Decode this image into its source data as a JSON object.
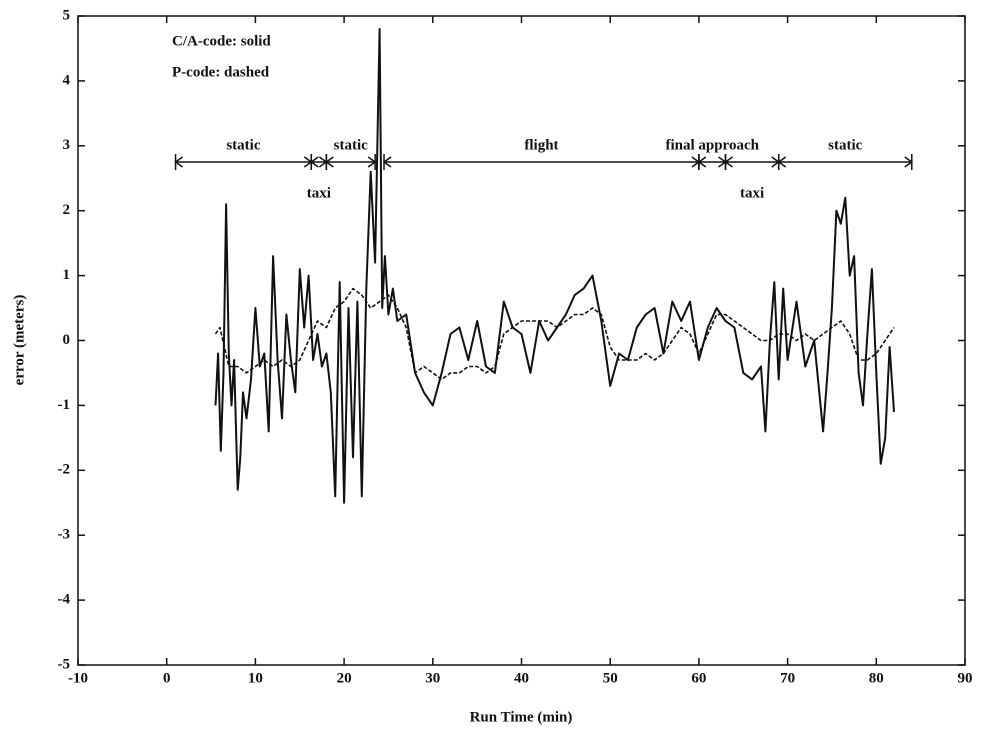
{
  "chart_data": {
    "type": "line",
    "xlabel": "Run Time (min)",
    "ylabel": "error (meters)",
    "xlim": [
      -10,
      90
    ],
    "xticks": [
      -10,
      0,
      10,
      20,
      30,
      40,
      50,
      60,
      70,
      80,
      90
    ],
    "ylim": [
      -5,
      5
    ],
    "yticks": [
      -5,
      -4,
      -3,
      -2,
      -1,
      0,
      1,
      2,
      3,
      4,
      5
    ],
    "series": [
      {
        "name": "C/A-code: solid",
        "color": "#111111",
        "dash": "solid",
        "x": [
          5.5,
          5.8,
          6.1,
          6.4,
          6.7,
          7.0,
          7.3,
          7.6,
          8.0,
          8.3,
          8.6,
          9.0,
          9.5,
          10.0,
          10.5,
          11.0,
          11.5,
          12.0,
          12.5,
          13.0,
          13.5,
          14.0,
          14.5,
          15.0,
          15.5,
          16.0,
          16.5,
          17.0,
          17.5,
          18.0,
          18.5,
          19.0,
          19.5,
          20.0,
          20.5,
          21.0,
          21.5,
          22.0,
          22.5,
          23.0,
          23.5,
          24.0,
          24.3,
          24.6,
          25.0,
          25.5,
          26.0,
          27.0,
          28.0,
          29.0,
          30.0,
          31.0,
          32.0,
          33.0,
          34.0,
          35.0,
          36.0,
          37.0,
          38.0,
          39.0,
          40.0,
          41.0,
          42.0,
          43.0,
          44.0,
          45.0,
          46.0,
          47.0,
          48.0,
          49.0,
          50.0,
          51.0,
          52.0,
          53.0,
          54.0,
          55.0,
          56.0,
          57.0,
          58.0,
          59.0,
          60.0,
          61.0,
          62.0,
          63.0,
          64.0,
          65.0,
          66.0,
          67.0,
          67.5,
          68.0,
          68.5,
          69.0,
          69.5,
          70.0,
          71.0,
          72.0,
          73.0,
          74.0,
          74.5,
          75.0,
          75.5,
          76.0,
          76.5,
          77.0,
          77.5,
          78.0,
          78.5,
          79.0,
          79.5,
          80.0,
          80.5,
          81.0,
          81.5,
          82.0
        ],
        "values": [
          -1.0,
          -0.2,
          -1.7,
          -0.5,
          2.1,
          -0.2,
          -1.0,
          -0.3,
          -2.3,
          -1.8,
          -0.8,
          -1.2,
          -0.6,
          0.5,
          -0.4,
          -0.2,
          -1.4,
          1.3,
          -0.3,
          -1.2,
          0.4,
          -0.3,
          -0.8,
          1.1,
          0.2,
          1.0,
          -0.3,
          0.1,
          -0.4,
          -0.2,
          -0.8,
          -2.4,
          0.9,
          -2.5,
          0.5,
          -1.8,
          0.6,
          -2.4,
          0.8,
          2.6,
          1.2,
          4.8,
          0.5,
          1.3,
          0.4,
          0.8,
          0.3,
          0.4,
          -0.5,
          -0.8,
          -1.0,
          -0.5,
          0.1,
          0.2,
          -0.3,
          0.3,
          -0.4,
          -0.5,
          0.6,
          0.2,
          0.1,
          -0.5,
          0.3,
          0.0,
          0.2,
          0.4,
          0.7,
          0.8,
          1.0,
          0.3,
          -0.7,
          -0.2,
          -0.3,
          0.2,
          0.4,
          0.5,
          -0.2,
          0.6,
          0.3,
          0.6,
          -0.3,
          0.2,
          0.5,
          0.3,
          0.2,
          -0.5,
          -0.6,
          -0.4,
          -1.4,
          0.0,
          0.9,
          -0.6,
          0.8,
          -0.3,
          0.6,
          -0.4,
          0.0,
          -1.4,
          -0.5,
          0.5,
          2.0,
          1.8,
          2.2,
          1.0,
          1.3,
          -0.5,
          -1.0,
          0.1,
          1.1,
          -0.5,
          -1.9,
          -1.5,
          -0.1,
          -1.1
        ]
      },
      {
        "name": "P-code: dashed",
        "color": "#111111",
        "dash": "dashed",
        "x": [
          5.5,
          6,
          7,
          8,
          9,
          10,
          11,
          12,
          13,
          14,
          15,
          16,
          17,
          18,
          19,
          20,
          21,
          22,
          23,
          24,
          25,
          26,
          27,
          28,
          29,
          30,
          31,
          32,
          33,
          34,
          35,
          36,
          37,
          38,
          39,
          40,
          41,
          42,
          43,
          44,
          45,
          46,
          47,
          48,
          49,
          50,
          51,
          52,
          53,
          54,
          55,
          56,
          57,
          58,
          59,
          60,
          61,
          62,
          63,
          64,
          65,
          66,
          67,
          68,
          69,
          70,
          71,
          72,
          73,
          74,
          75,
          76,
          77,
          78,
          79,
          80,
          81,
          82
        ],
        "values": [
          0.1,
          0.2,
          -0.4,
          -0.4,
          -0.5,
          -0.4,
          -0.3,
          -0.4,
          -0.3,
          -0.4,
          -0.3,
          0.0,
          0.3,
          0.2,
          0.5,
          0.6,
          0.8,
          0.7,
          0.5,
          0.6,
          0.7,
          0.5,
          0.2,
          -0.5,
          -0.4,
          -0.5,
          -0.6,
          -0.5,
          -0.5,
          -0.4,
          -0.4,
          -0.5,
          -0.4,
          0.1,
          0.2,
          0.3,
          0.3,
          0.3,
          0.3,
          0.2,
          0.3,
          0.4,
          0.4,
          0.5,
          0.4,
          -0.1,
          -0.3,
          -0.3,
          -0.3,
          -0.2,
          -0.3,
          -0.2,
          0.0,
          0.2,
          0.1,
          -0.2,
          0.1,
          0.4,
          0.4,
          0.3,
          0.2,
          0.1,
          0.0,
          0.0,
          0.1,
          0.1,
          0.0,
          0.1,
          0.0,
          0.1,
          0.2,
          0.3,
          0.1,
          -0.3,
          -0.3,
          -0.2,
          0.0,
          0.2
        ]
      }
    ],
    "phases": [
      {
        "label": "static",
        "start": 1,
        "end": 16.3,
        "label_position": "above"
      },
      {
        "label": "taxi",
        "start": 16.3,
        "end": 18,
        "label_position": "below"
      },
      {
        "label": "static",
        "start": 18,
        "end": 23.5,
        "label_position": "above"
      },
      {
        "label": "flight",
        "start": 24.5,
        "end": 60,
        "label_position": "above"
      },
      {
        "label": "final approach",
        "start": 60,
        "end": 63,
        "label_position": "above"
      },
      {
        "label": "taxi",
        "start": 63,
        "end": 69,
        "label_position": "below"
      },
      {
        "label": "static",
        "start": 69,
        "end": 84,
        "label_position": "above"
      }
    ]
  }
}
